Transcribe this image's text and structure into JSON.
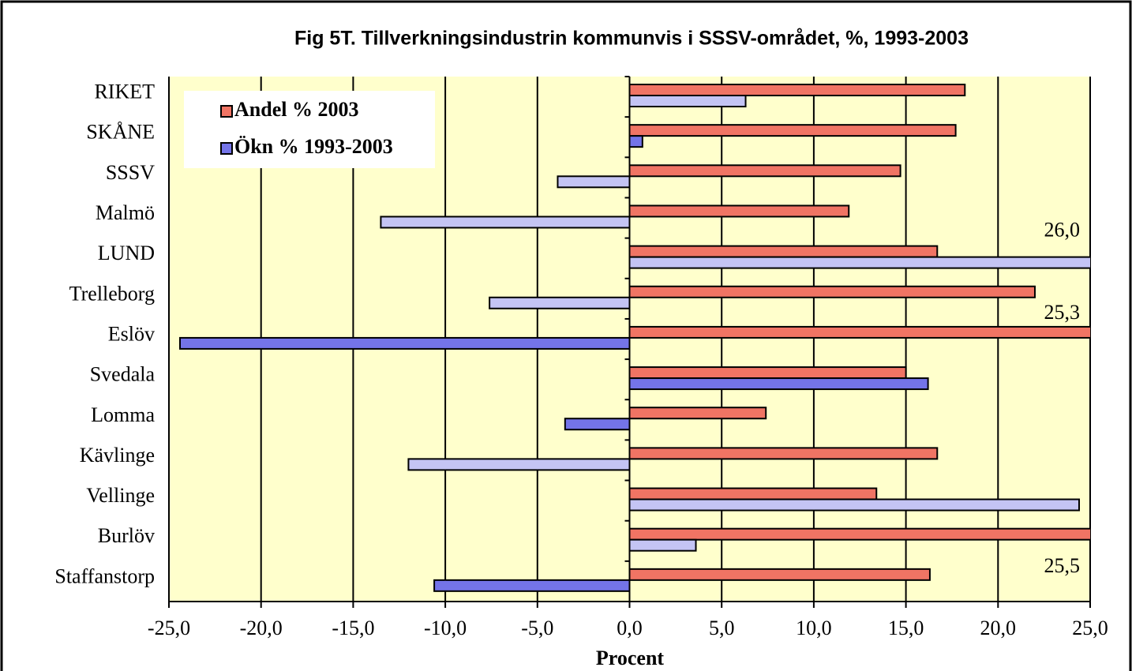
{
  "chart_data": {
    "type": "bar",
    "orientation": "horizontal",
    "title": "Fig 5T. Tillverkningsindustrin kommunvis  i SSSV-området, %, 1993-2003",
    "xlabel": "Procent",
    "categories": [
      "RIKET",
      "SKÅNE",
      "SSSV",
      "Malmö",
      "LUND",
      "Trelleborg",
      "Eslöv",
      "Svedala",
      "Lomma",
      "Kävlinge",
      "Vellinge",
      "Burlöv",
      "Staffanstorp"
    ],
    "series": [
      {
        "name": "Andel % 2003",
        "color": "#f07464",
        "values": [
          18.2,
          17.7,
          14.7,
          11.9,
          16.7,
          22.0,
          25.3,
          15.0,
          7.4,
          16.7,
          13.4,
          25.5,
          16.3
        ],
        "value_labels": [
          null,
          null,
          null,
          null,
          null,
          null,
          "25,3",
          null,
          null,
          null,
          null,
          "25,5",
          null
        ]
      },
      {
        "name": "Ökn % 1993-2003",
        "color": "#7474e8",
        "colors": [
          "#c4c4f4",
          "#7474e8",
          "#c4c4f4",
          "#c4c4f4",
          "#c4c4f4",
          "#c4c4f4",
          "#7474e8",
          "#7474e8",
          "#7474e8",
          "#c4c4f4",
          "#c4c4f4",
          "#c4c4f4",
          "#7474e8"
        ],
        "values": [
          6.3,
          0.7,
          -3.9,
          -13.5,
          26.0,
          -7.6,
          -24.4,
          16.2,
          -3.5,
          -12.0,
          24.4,
          3.6,
          -10.6
        ],
        "value_labels": [
          null,
          null,
          null,
          null,
          "26,0",
          null,
          null,
          null,
          null,
          null,
          null,
          null,
          null
        ]
      }
    ],
    "xlim": [
      -25,
      25
    ],
    "xticks": [
      {
        "value": -25,
        "label": "-25,0"
      },
      {
        "value": -20,
        "label": "-20,0"
      },
      {
        "value": -15,
        "label": "-15,0"
      },
      {
        "value": -10,
        "label": "-10,0"
      },
      {
        "value": -5,
        "label": "-5,0"
      },
      {
        "value": 0,
        "label": "0,0"
      },
      {
        "value": 5,
        "label": "5,0"
      },
      {
        "value": 10,
        "label": "10,0"
      },
      {
        "value": 15,
        "label": "15,0"
      },
      {
        "value": 20,
        "label": "20,0"
      },
      {
        "value": 25,
        "label": "25,0"
      }
    ],
    "grid": true,
    "legend": "upper left"
  }
}
